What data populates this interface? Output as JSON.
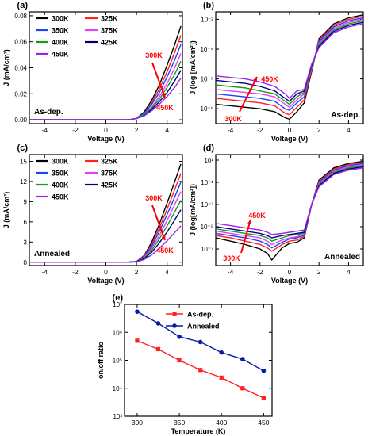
{
  "figure": {
    "colors": {
      "300K": "#000000",
      "325K": "#ff2020",
      "350K": "#1f3fff",
      "375K": "#e040ff",
      "400K": "#159c15",
      "425K": "#00007f",
      "450K": "#a020f0",
      "arrow": "#ff0000",
      "asdep": "#ff2222",
      "annealed": "#0a1aa8"
    }
  },
  "chart_data": [
    {
      "panel": "(a)",
      "type": "line",
      "xlabel": "Voltage (V)",
      "ylabel": "J (mA/cm²)",
      "xlim": [
        -5,
        5
      ],
      "ylim": [
        -0.003,
        0.083
      ],
      "yscale": "linear",
      "xticks": [
        -4,
        -2,
        0,
        2,
        4
      ],
      "yticks": [
        0.0,
        0.02,
        0.04,
        0.06,
        0.08
      ],
      "ytick_labels": [
        "0.00",
        "0.02",
        "0.04",
        "0.06",
        "0.08"
      ],
      "legend": [
        "300K",
        "325K",
        "350K",
        "375K",
        "400K",
        "425K",
        "450K"
      ],
      "annotation": "As-dep.",
      "arrow_labels": [
        "300K",
        "450K"
      ],
      "series": [
        {
          "name": "300K",
          "x": [
            -5,
            1.5,
            2.0,
            2.5,
            3.0,
            3.5,
            4.0,
            4.5,
            4.9
          ],
          "y": [
            0,
            0,
            0.001,
            0.006,
            0.015,
            0.027,
            0.042,
            0.058,
            0.072
          ]
        },
        {
          "name": "325K",
          "x": [
            -5,
            1.5,
            2.0,
            2.5,
            3.0,
            3.5,
            4.0,
            4.5,
            4.9
          ],
          "y": [
            0,
            0,
            0.001,
            0.005,
            0.013,
            0.024,
            0.037,
            0.052,
            0.065
          ]
        },
        {
          "name": "350K",
          "x": [
            -5,
            1.5,
            2.0,
            2.5,
            3.0,
            3.5,
            4.0,
            4.5,
            4.9
          ],
          "y": [
            0,
            0,
            0.001,
            0.005,
            0.012,
            0.021,
            0.033,
            0.046,
            0.058
          ]
        },
        {
          "name": "375K",
          "x": [
            -5,
            1.5,
            2.0,
            2.5,
            3.0,
            3.5,
            4.0,
            4.5,
            4.9
          ],
          "y": [
            0,
            0,
            0.001,
            0.004,
            0.01,
            0.018,
            0.028,
            0.04,
            0.051
          ]
        },
        {
          "name": "400K",
          "x": [
            -5,
            1.5,
            2.0,
            2.5,
            3.0,
            3.5,
            4.0,
            4.5,
            4.9
          ],
          "y": [
            0,
            0,
            0.001,
            0.004,
            0.009,
            0.016,
            0.025,
            0.035,
            0.045
          ]
        },
        {
          "name": "425K",
          "x": [
            -5,
            1.5,
            2.0,
            2.5,
            3.0,
            3.5,
            4.0,
            4.5,
            4.9
          ],
          "y": [
            0,
            0,
            0.001,
            0.003,
            0.008,
            0.014,
            0.021,
            0.03,
            0.038
          ]
        },
        {
          "name": "450K",
          "x": [
            -5,
            1.5,
            2.0,
            2.5,
            3.0,
            3.5,
            4.0,
            4.5,
            4.9
          ],
          "y": [
            0,
            0,
            0.001,
            0.003,
            0.007,
            0.012,
            0.018,
            0.025,
            0.032
          ]
        }
      ]
    },
    {
      "panel": "(b)",
      "type": "line",
      "xlabel": "Voltage (V)",
      "ylabel": "J (log [mA/cm²])",
      "xlim": [
        -5,
        5
      ],
      "ylim": [
        -9,
        -1.5
      ],
      "yscale": "log",
      "xticks": [
        -4,
        -2,
        0,
        2,
        4
      ],
      "yticks": [
        -8,
        -6,
        -4,
        -2
      ],
      "ytick_labels": [
        "10⁻⁸",
        "10⁻⁶",
        "10⁻⁴",
        "10⁻²"
      ],
      "annotation": "As-dep.",
      "arrow_labels": [
        "300K",
        "450K"
      ],
      "series": [
        {
          "name": "300K",
          "x": [
            -5,
            -4,
            -3,
            -2,
            -1,
            -0.3,
            0,
            0.5,
            1.0,
            1.5,
            2.0,
            3.0,
            4.0,
            5.0
          ],
          "y": [
            -7.7,
            -7.8,
            -7.9,
            -8.0,
            -8.2,
            -8.6,
            -8.7,
            -8.2,
            -7.6,
            -5.5,
            -3.3,
            -2.3,
            -1.9,
            -1.7
          ]
        },
        {
          "name": "325K",
          "x": [
            -5,
            -4,
            -3,
            -2,
            -1,
            -0.3,
            0,
            0.5,
            1.0,
            1.5,
            2.0,
            3.0,
            4.0,
            5.0
          ],
          "y": [
            -7.3,
            -7.4,
            -7.5,
            -7.6,
            -7.8,
            -8.3,
            -8.4,
            -7.9,
            -7.4,
            -5.4,
            -3.4,
            -2.4,
            -2.0,
            -1.8
          ]
        },
        {
          "name": "350K",
          "x": [
            -5,
            -4,
            -3,
            -2,
            -1,
            -0.3,
            0,
            0.5,
            1.0,
            1.5,
            2.0,
            3.0,
            4.0,
            5.0
          ],
          "y": [
            -7.0,
            -7.1,
            -7.2,
            -7.3,
            -7.5,
            -8.0,
            -8.1,
            -7.6,
            -7.2,
            -5.3,
            -3.5,
            -2.5,
            -2.1,
            -1.9
          ]
        },
        {
          "name": "375K",
          "x": [
            -5,
            -4,
            -3,
            -2,
            -1,
            -0.3,
            0,
            0.5,
            1.0,
            1.5,
            2.0,
            3.0,
            4.0,
            5.0
          ],
          "y": [
            -6.7,
            -6.8,
            -6.9,
            -7.0,
            -7.2,
            -7.7,
            -7.9,
            -7.4,
            -7.0,
            -5.3,
            -3.6,
            -2.6,
            -2.2,
            -2.0
          ]
        },
        {
          "name": "400K",
          "x": [
            -5,
            -4,
            -3,
            -2,
            -1,
            -0.3,
            0,
            0.5,
            1.0,
            1.5,
            2.0,
            3.0,
            4.0,
            5.0
          ],
          "y": [
            -6.4,
            -6.5,
            -6.6,
            -6.8,
            -7.0,
            -7.5,
            -7.7,
            -7.2,
            -6.9,
            -5.2,
            -3.7,
            -2.7,
            -2.3,
            -2.1
          ]
        },
        {
          "name": "425K",
          "x": [
            -5,
            -4,
            -3,
            -2,
            -1,
            -0.3,
            0,
            0.5,
            1.0,
            1.5,
            2.0,
            3.0,
            4.0,
            5.0
          ],
          "y": [
            -6.1,
            -6.2,
            -6.3,
            -6.5,
            -6.8,
            -7.3,
            -7.5,
            -7.0,
            -6.8,
            -5.1,
            -3.8,
            -2.8,
            -2.4,
            -2.2
          ]
        },
        {
          "name": "450K",
          "x": [
            -5,
            -4,
            -3,
            -2,
            -1,
            -0.3,
            0,
            0.5,
            1.0,
            1.5,
            2.0,
            3.0,
            4.0,
            5.0
          ],
          "y": [
            -5.8,
            -5.9,
            -6.0,
            -6.2,
            -6.5,
            -7.0,
            -7.3,
            -6.8,
            -6.7,
            -5.0,
            -3.9,
            -2.9,
            -2.5,
            -2.3
          ]
        }
      ]
    },
    {
      "panel": "(c)",
      "type": "line",
      "xlabel": "Voltage (V)",
      "ylabel": "J (mA/cm²)",
      "xlim": [
        -5,
        5
      ],
      "ylim": [
        -0.5,
        16
      ],
      "yscale": "linear",
      "xticks": [
        -4,
        -2,
        0,
        2,
        4
      ],
      "yticks": [
        0,
        3,
        6,
        9,
        12,
        15
      ],
      "ytick_labels": [
        "0",
        "3",
        "6",
        "9",
        "12",
        "15"
      ],
      "legend": [
        "300K",
        "325K",
        "350K",
        "375K",
        "400K",
        "425K",
        "450K"
      ],
      "annotation": "Annealed",
      "arrow_labels": [
        "300K",
        "450K"
      ],
      "series": [
        {
          "name": "300K",
          "x": [
            -5,
            1.5,
            2.0,
            2.5,
            3.0,
            3.5,
            4.0,
            4.5,
            4.9
          ],
          "y": [
            0,
            0,
            0.1,
            1.0,
            3.0,
            5.7,
            8.8,
            12.0,
            14.6
          ]
        },
        {
          "name": "325K",
          "x": [
            -5,
            1.5,
            2.0,
            2.5,
            3.0,
            3.5,
            4.0,
            4.5,
            4.9
          ],
          "y": [
            0,
            0,
            0.1,
            0.9,
            2.7,
            5.1,
            7.9,
            10.8,
            13.2
          ]
        },
        {
          "name": "350K",
          "x": [
            -5,
            1.5,
            2.0,
            2.5,
            3.0,
            3.5,
            4.0,
            4.5,
            4.9
          ],
          "y": [
            0,
            0,
            0.1,
            0.8,
            2.4,
            4.6,
            7.1,
            9.7,
            11.9
          ]
        },
        {
          "name": "375K",
          "x": [
            -5,
            1.5,
            2.0,
            2.5,
            3.0,
            3.5,
            4.0,
            4.5,
            4.9
          ],
          "y": [
            0,
            0,
            0.1,
            0.7,
            2.1,
            4.0,
            6.2,
            8.6,
            10.5
          ]
        },
        {
          "name": "400K",
          "x": [
            -5,
            1.5,
            2.0,
            2.5,
            3.0,
            3.5,
            4.0,
            4.5,
            4.9
          ],
          "y": [
            0,
            0,
            0.1,
            0.6,
            1.8,
            3.5,
            5.4,
            7.5,
            9.2
          ]
        },
        {
          "name": "425K",
          "x": [
            -5,
            1.5,
            2.0,
            2.5,
            3.0,
            3.5,
            4.0,
            4.5,
            4.9
          ],
          "y": [
            0,
            0,
            0.1,
            0.5,
            1.5,
            2.9,
            4.5,
            6.3,
            7.8
          ]
        },
        {
          "name": "450K",
          "x": [
            -5,
            1.5,
            2.0,
            2.5,
            3.0,
            3.5,
            4.0,
            4.5,
            4.9
          ],
          "y": [
            0,
            0,
            0.05,
            0.4,
            1.1,
            2.1,
            3.2,
            4.4,
            5.4
          ]
        }
      ]
    },
    {
      "panel": "(d)",
      "type": "line",
      "xlabel": "Voltage (V)",
      "ylabel": "J (log[mA/cm²])",
      "xlim": [
        -5,
        5
      ],
      "ylim": [
        -8.5,
        1.5
      ],
      "yscale": "log",
      "xticks": [
        -4,
        -2,
        0,
        2,
        4
      ],
      "yticks": [
        -7,
        -5,
        -3,
        -1,
        1
      ],
      "ytick_labels": [
        "10⁻⁷",
        "10⁻⁵",
        "10⁻³",
        "10⁻¹",
        "10¹"
      ],
      "annotation": "Annealed",
      "arrow_labels": [
        "300K",
        "450K"
      ],
      "series": [
        {
          "name": "300K",
          "x": [
            -5,
            -4,
            -3,
            -2,
            -1.5,
            -1.2,
            -0.5,
            0,
            0.5,
            1.0,
            1.5,
            2.0,
            3.0,
            4.0,
            5.0
          ],
          "y": [
            -6.0,
            -6.3,
            -6.6,
            -7.0,
            -7.4,
            -8.0,
            -6.9,
            -6.5,
            -6.4,
            -6.0,
            -3.0,
            -0.8,
            0.3,
            0.7,
            0.9
          ]
        },
        {
          "name": "325K",
          "x": [
            -5,
            -4,
            -3,
            -2,
            -1.5,
            -1.2,
            -0.5,
            0,
            0.5,
            1.0,
            1.5,
            2.0,
            3.0,
            4.0,
            5.0
          ],
          "y": [
            -5.8,
            -6.0,
            -6.3,
            -6.6,
            -6.9,
            -7.2,
            -6.6,
            -6.3,
            -6.2,
            -5.9,
            -3.0,
            -0.9,
            0.2,
            0.6,
            0.8
          ]
        },
        {
          "name": "350K",
          "x": [
            -5,
            -4,
            -3,
            -2,
            -1.5,
            -1.2,
            -0.5,
            0,
            0.5,
            1.0,
            1.5,
            2.0,
            3.0,
            4.0,
            5.0
          ],
          "y": [
            -5.6,
            -5.8,
            -6.0,
            -6.3,
            -6.6,
            -6.9,
            -6.4,
            -6.1,
            -6.0,
            -5.8,
            -3.0,
            -1.0,
            0.1,
            0.5,
            0.7
          ]
        },
        {
          "name": "375K",
          "x": [
            -5,
            -4,
            -3,
            -2,
            -1.5,
            -1.2,
            -0.5,
            0,
            0.5,
            1.0,
            1.5,
            2.0,
            3.0,
            4.0,
            5.0
          ],
          "y": [
            -5.4,
            -5.6,
            -5.8,
            -6.0,
            -6.3,
            -6.6,
            -6.2,
            -6.0,
            -5.9,
            -5.7,
            -3.0,
            -1.1,
            0.0,
            0.4,
            0.6
          ]
        },
        {
          "name": "400K",
          "x": [
            -5,
            -4,
            -3,
            -2,
            -1.5,
            -1.2,
            -0.5,
            0,
            0.5,
            1.0,
            1.5,
            2.0,
            3.0,
            4.0,
            5.0
          ],
          "y": [
            -5.2,
            -5.4,
            -5.6,
            -5.8,
            -6.0,
            -6.3,
            -6.0,
            -5.8,
            -5.7,
            -5.6,
            -3.0,
            -1.2,
            -0.1,
            0.3,
            0.5
          ]
        },
        {
          "name": "425K",
          "x": [
            -5,
            -4,
            -3,
            -2,
            -1.5,
            -1.2,
            -0.5,
            0,
            0.5,
            1.0,
            1.5,
            2.0,
            3.0,
            4.0,
            5.0
          ],
          "y": [
            -5.0,
            -5.2,
            -5.4,
            -5.6,
            -5.8,
            -6.0,
            -5.8,
            -5.7,
            -5.6,
            -5.5,
            -3.0,
            -1.3,
            -0.2,
            0.2,
            0.4
          ]
        },
        {
          "name": "450K",
          "x": [
            -5,
            -4,
            -3,
            -2,
            -1.5,
            -1.2,
            -0.5,
            0,
            0.5,
            1.0,
            1.5,
            2.0,
            3.0,
            4.0,
            5.0
          ],
          "y": [
            -4.7,
            -4.9,
            -5.1,
            -5.3,
            -5.5,
            -5.7,
            -5.6,
            -5.5,
            -5.4,
            -5.3,
            -3.0,
            -1.4,
            -0.3,
            0.1,
            0.3
          ]
        }
      ]
    },
    {
      "panel": "(e)",
      "type": "line",
      "xlabel": "Temperature (K)",
      "ylabel": "on/off ratio",
      "xlim": [
        285,
        460
      ],
      "ylim": [
        3,
        7
      ],
      "yscale": "log",
      "xticks": [
        300,
        350,
        400,
        450
      ],
      "yticks": [
        3,
        4,
        5,
        6,
        7
      ],
      "ytick_labels": [
        "10³",
        "10⁴",
        "10⁵",
        "10⁶",
        "10⁷"
      ],
      "legend": [
        "As-dep.",
        "Annealed"
      ],
      "series": [
        {
          "name": "As-dep.",
          "x": [
            300,
            325,
            350,
            375,
            400,
            425,
            450
          ],
          "y": [
            500000,
            250000,
            100000,
            45000,
            24000,
            10000,
            4500
          ]
        },
        {
          "name": "Annealed",
          "x": [
            300,
            325,
            350,
            375,
            400,
            425,
            450
          ],
          "y": [
            5500000,
            2100000,
            700000,
            450000,
            190000,
            110000,
            42000
          ]
        }
      ]
    }
  ]
}
